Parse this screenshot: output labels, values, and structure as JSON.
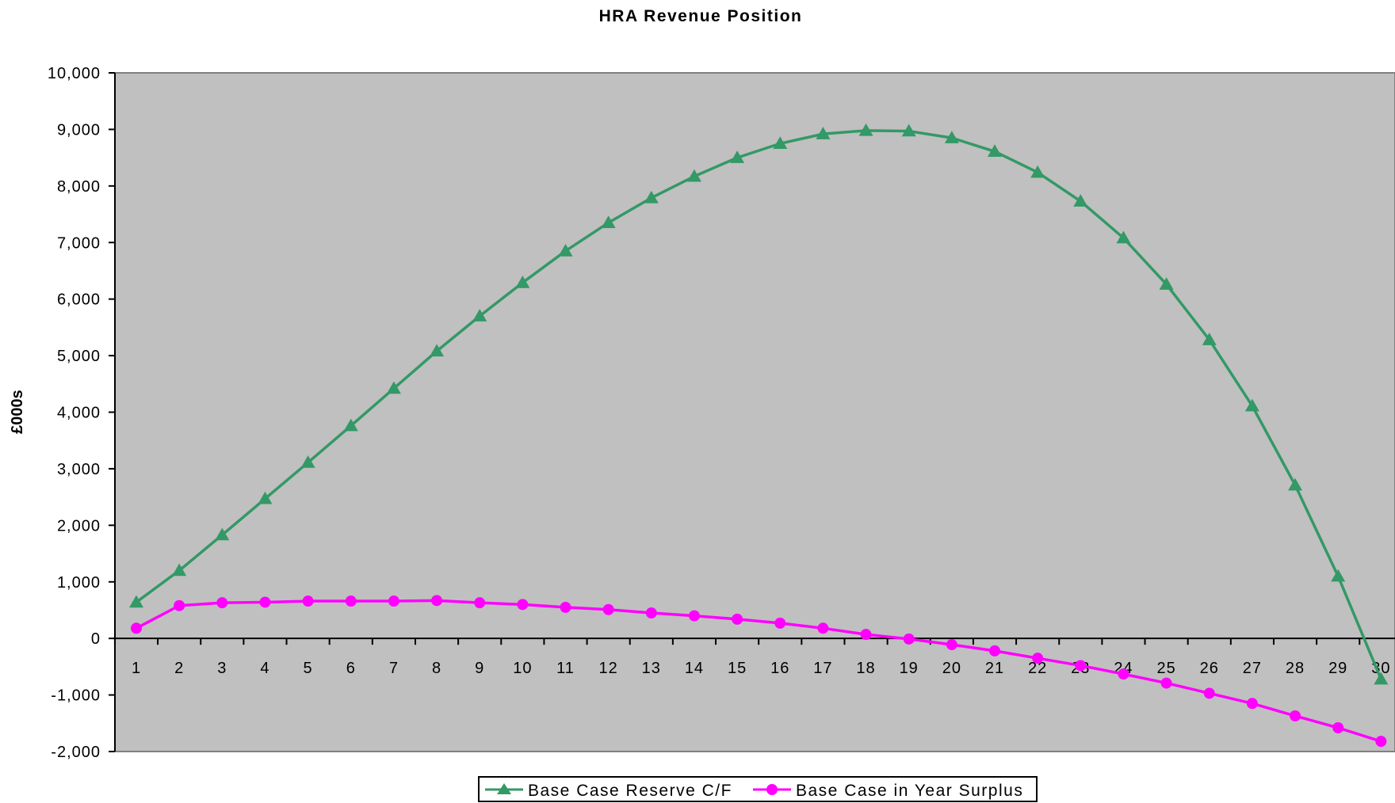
{
  "chart_data": {
    "type": "line",
    "title": "HRA Revenue Position",
    "xlabel": "",
    "ylabel": "£000s",
    "ylim": [
      -2000,
      10000
    ],
    "ytick_values": [
      -2000,
      -1000,
      0,
      1000,
      2000,
      3000,
      4000,
      5000,
      6000,
      7000,
      8000,
      9000,
      10000
    ],
    "ytick_labels": [
      "-2,000",
      "-1,000",
      "0",
      "1,000",
      "2,000",
      "3,000",
      "4,000",
      "5,000",
      "6,000",
      "7,000",
      "8,000",
      "9,000",
      "10,000"
    ],
    "categories": [
      "1",
      "2",
      "3",
      "4",
      "5",
      "6",
      "7",
      "8",
      "9",
      "10",
      "11",
      "12",
      "13",
      "14",
      "15",
      "16",
      "17",
      "18",
      "19",
      "20",
      "21",
      "22",
      "23",
      "24",
      "25",
      "26",
      "27",
      "28",
      "29",
      "30"
    ],
    "plot_background": "#c0c0c0",
    "grid": false,
    "legend_position": "bottom",
    "series": [
      {
        "name": "Base Case Reserve C/F",
        "color": "#339966",
        "marker": "triangle",
        "values": [
          640,
          1200,
          1830,
          2470,
          3110,
          3760,
          4420,
          5080,
          5700,
          6290,
          6850,
          7350,
          7790,
          8170,
          8500,
          8750,
          8920,
          8980,
          8970,
          8850,
          8610,
          8240,
          7730,
          7080,
          6260,
          5280,
          4110,
          2710,
          1100,
          -720
        ]
      },
      {
        "name": "Base Case in Year Surplus",
        "color": "#ff00ff",
        "marker": "circle",
        "values": [
          180,
          580,
          630,
          640,
          660,
          660,
          660,
          670,
          630,
          600,
          550,
          510,
          450,
          400,
          340,
          270,
          180,
          70,
          -10,
          -110,
          -220,
          -350,
          -480,
          -630,
          -790,
          -970,
          -1150,
          -1370,
          -1580,
          -1820
        ]
      }
    ]
  }
}
